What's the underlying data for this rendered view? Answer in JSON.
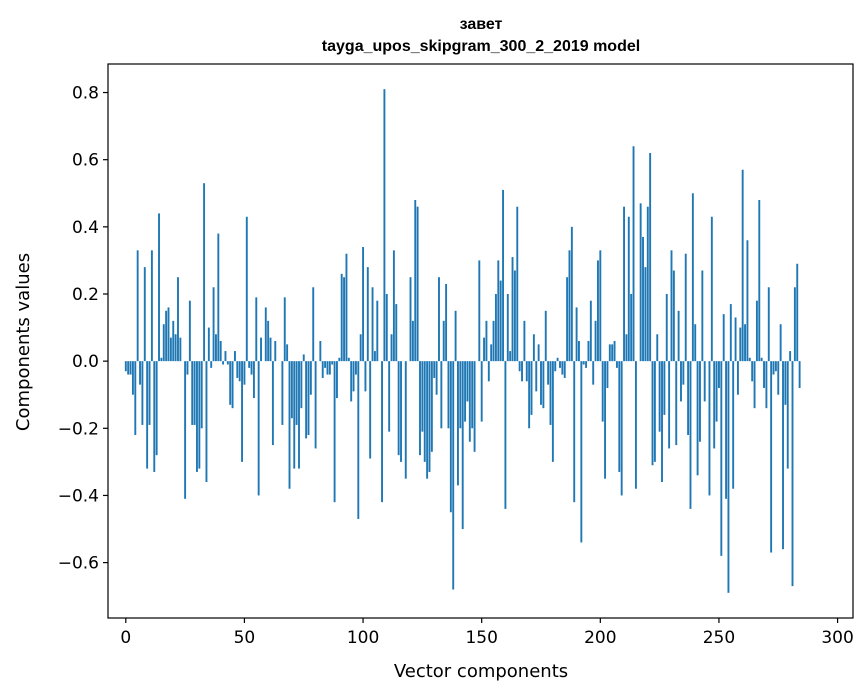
{
  "chart_data": {
    "type": "bar",
    "title": "завет",
    "subtitle": "tayga_upos_skipgram_300_2_2019 model",
    "xlabel": "Vector components",
    "ylabel": "Components values",
    "xlim": [
      -7.5,
      306.5
    ],
    "ylim": [
      -0.765,
      0.885
    ],
    "xticks": [
      0,
      50,
      100,
      150,
      200,
      250,
      300
    ],
    "xtick_labels": [
      "0",
      "50",
      "100",
      "150",
      "200",
      "250",
      "300"
    ],
    "yticks": [
      -0.6,
      -0.4,
      -0.2,
      0.0,
      0.2,
      0.4,
      0.6,
      0.8
    ],
    "ytick_labels": [
      "−0.6",
      "−0.4",
      "−0.2",
      "0.0",
      "0.2",
      "0.4",
      "0.6",
      "0.8"
    ],
    "bar_color": "#1f77b4",
    "grid": false,
    "series": [
      {
        "name": "components",
        "values": [
          -0.03,
          -0.04,
          -0.04,
          -0.1,
          -0.22,
          0.33,
          -0.07,
          -0.19,
          0.28,
          -0.32,
          -0.19,
          0.33,
          -0.33,
          -0.28,
          0.44,
          0.01,
          0.11,
          0.15,
          0.16,
          0.07,
          0.12,
          0.08,
          0.25,
          0.07,
          0.0,
          -0.41,
          -0.04,
          0.18,
          -0.19,
          -0.19,
          -0.33,
          -0.32,
          -0.2,
          0.53,
          -0.36,
          0.1,
          -0.02,
          0.22,
          0.08,
          0.38,
          0.06,
          -0.01,
          0.03,
          -0.01,
          -0.13,
          -0.14,
          0.03,
          -0.05,
          -0.06,
          -0.3,
          -0.07,
          0.43,
          -0.02,
          -0.04,
          -0.11,
          0.19,
          -0.4,
          0.07,
          0.0,
          0.16,
          0.12,
          0.07,
          -0.25,
          0.06,
          0.0,
          0.0,
          -0.19,
          0.19,
          0.05,
          -0.38,
          -0.17,
          -0.32,
          -0.19,
          -0.32,
          -0.14,
          0.02,
          -0.23,
          -0.22,
          -0.1,
          0.22,
          -0.26,
          0.0,
          0.06,
          -0.05,
          -0.02,
          -0.04,
          -0.04,
          -0.01,
          -0.42,
          -0.11,
          0.01,
          0.26,
          0.25,
          0.32,
          0.01,
          -0.12,
          -0.09,
          -0.04,
          -0.47,
          0.08,
          0.34,
          -0.09,
          0.28,
          -0.29,
          0.22,
          0.03,
          0.18,
          0.0,
          -0.42,
          0.81,
          0.2,
          -0.21,
          0.08,
          0.33,
          0.17,
          -0.28,
          -0.3,
          0.0,
          -0.35,
          0.0,
          0.25,
          0.12,
          0.48,
          0.46,
          -0.28,
          -0.21,
          -0.3,
          -0.35,
          -0.33,
          -0.27,
          -0.05,
          -0.1,
          0.25,
          -0.2,
          0.12,
          0.23,
          -0.2,
          -0.45,
          -0.68,
          0.15,
          -0.37,
          -0.2,
          -0.5,
          -0.18,
          -0.12,
          -0.24,
          -0.2,
          -0.27,
          0.0,
          0.3,
          -0.18,
          0.07,
          0.12,
          -0.06,
          0.05,
          0.12,
          0.2,
          0.3,
          0.24,
          0.51,
          -0.44,
          0.2,
          0.03,
          0.31,
          0.27,
          0.46,
          -0.03,
          -0.06,
          0.12,
          -0.06,
          -0.2,
          -0.16,
          0.08,
          -0.09,
          0.05,
          -0.13,
          -0.14,
          0.15,
          -0.07,
          -0.19,
          -0.3,
          -0.03,
          0.01,
          -0.02,
          -0.04,
          -0.05,
          0.25,
          0.33,
          0.4,
          -0.42,
          0.16,
          0.06,
          -0.54,
          -0.01,
          -0.02,
          0.06,
          0.18,
          -0.07,
          0.12,
          0.3,
          0.33,
          -0.18,
          -0.35,
          -0.08,
          0.05,
          0.05,
          0.06,
          -0.02,
          -0.33,
          -0.4,
          0.46,
          0.08,
          0.43,
          0.2,
          0.64,
          -0.38,
          0.0,
          0.47,
          0.37,
          0.28,
          0.46,
          0.62,
          -0.31,
          -0.3,
          0.08,
          -0.21,
          -0.36,
          -0.16,
          0.2,
          -0.26,
          0.33,
          0.27,
          -0.25,
          0.15,
          -0.12,
          -0.07,
          0.32,
          -0.22,
          -0.44,
          0.5,
          0.11,
          -0.34,
          -0.24,
          0.27,
          -0.12,
          0.0,
          -0.4,
          0.43,
          -0.26,
          -0.18,
          -0.08,
          -0.58,
          0.14,
          -0.41,
          -0.69,
          0.17,
          -0.38,
          0.13,
          -0.1,
          0.1,
          0.57,
          0.11,
          0.36,
          0.01,
          -0.06,
          -0.14,
          0.18,
          0.48,
          0.01,
          -0.08,
          -0.14,
          0.22,
          -0.57,
          -0.04,
          -0.03,
          -0.1,
          0.11,
          -0.56,
          -0.13,
          -0.32,
          0.03,
          -0.67,
          0.22,
          0.29,
          -0.08
        ]
      }
    ]
  }
}
